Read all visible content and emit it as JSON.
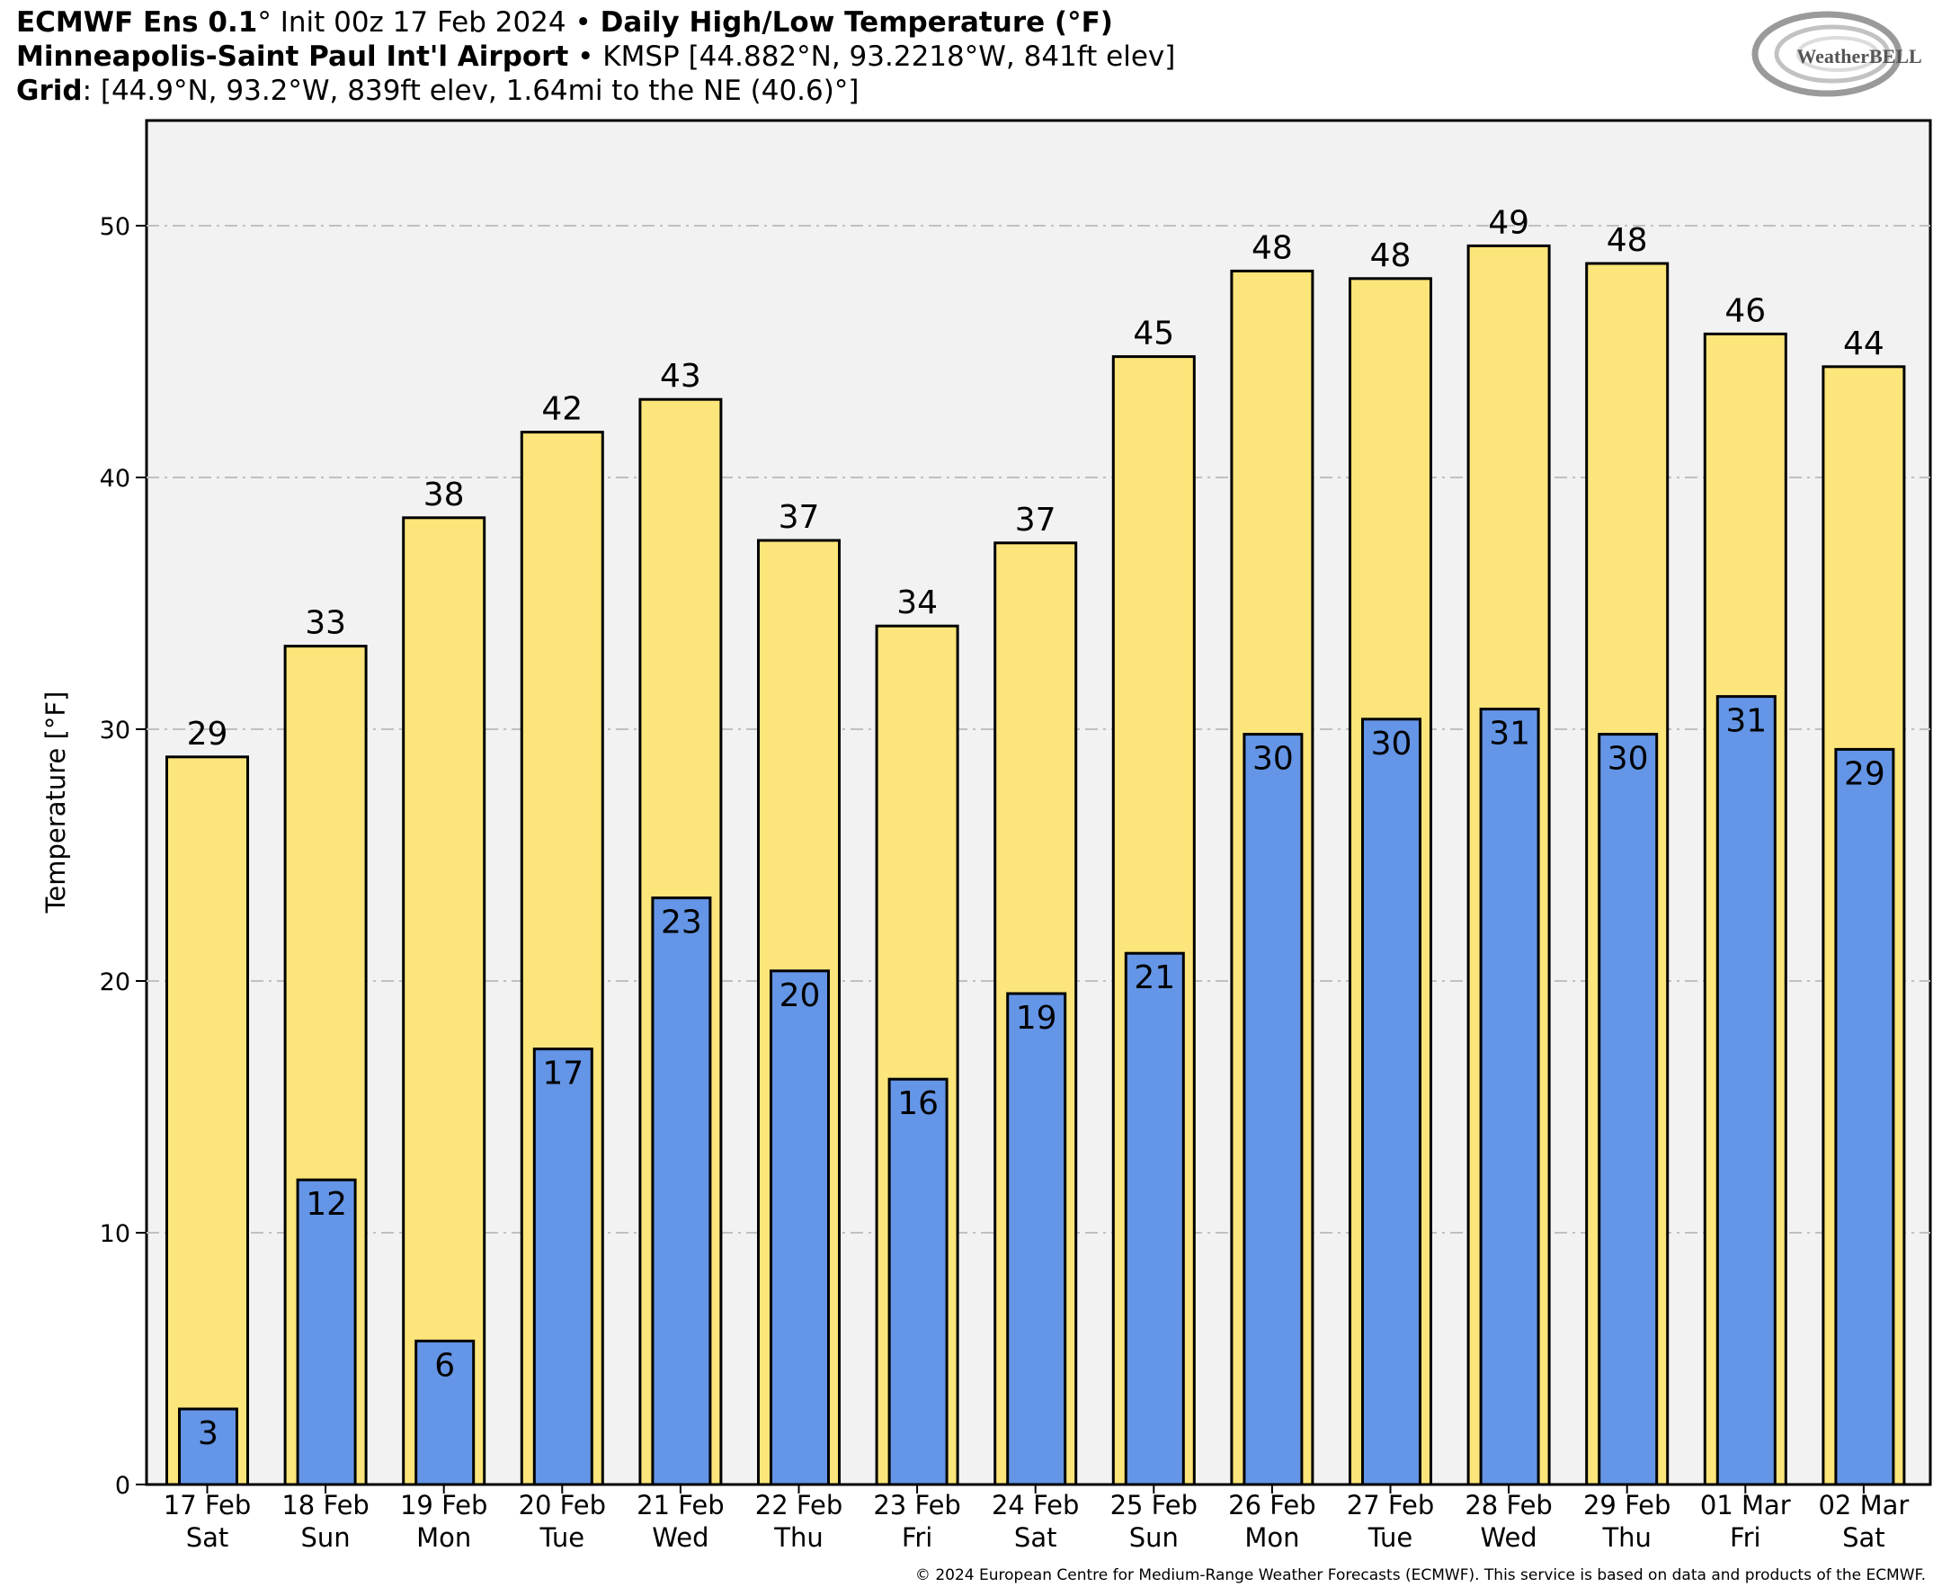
{
  "header": {
    "line1_bold1": "ECMWF Ens 0.1",
    "line1_deg": "°",
    "line1_normal": " Init 00z 17 Feb 2024 • ",
    "line1_bold2": "Daily High/Low Temperature (°F)",
    "line2_bold": "Minneapolis-Saint Paul Int'l Airport",
    "line2_normal": " • KMSP [44.882°N, 93.2218°W, 841ft elev]",
    "line3_bold": "Grid",
    "line3_normal": ": [44.9°N, 93.2°W, 839ft elev, 1.64mi to the NE (40.6)°]"
  },
  "logo": {
    "text": "WeatherBELL"
  },
  "copyright": "© 2024 European Centre for Medium-Range Weather Forecasts (ECMWF). This service is based on data and products of the ECMWF.",
  "colors": {
    "high_bar": "#fce57a",
    "low_bar": "#6495e6",
    "plot_bg": "#f2f2f2",
    "grid": "#c0c0c0"
  },
  "chart_data": {
    "type": "bar",
    "ylabel": "Temperature [°F]",
    "ylim": [
      0,
      53
    ],
    "yticks": [
      0,
      10,
      20,
      30,
      40,
      50
    ],
    "grid": true,
    "categories": [
      [
        "17 Feb",
        "Sat"
      ],
      [
        "18 Feb",
        "Sun"
      ],
      [
        "19 Feb",
        "Mon"
      ],
      [
        "20 Feb",
        "Tue"
      ],
      [
        "21 Feb",
        "Wed"
      ],
      [
        "22 Feb",
        "Thu"
      ],
      [
        "23 Feb",
        "Fri"
      ],
      [
        "24 Feb",
        "Sat"
      ],
      [
        "25 Feb",
        "Sun"
      ],
      [
        "26 Feb",
        "Mon"
      ],
      [
        "27 Feb",
        "Tue"
      ],
      [
        "28 Feb",
        "Wed"
      ],
      [
        "29 Feb",
        "Thu"
      ],
      [
        "01 Mar",
        "Fri"
      ],
      [
        "02 Mar",
        "Sat"
      ]
    ],
    "series": [
      {
        "values": [
          28.9,
          33.3,
          38.4,
          41.8,
          43.1,
          37.5,
          34.1,
          37.4,
          44.8,
          48.2,
          47.9,
          49.2,
          48.5,
          45.7,
          44.4
        ],
        "labels": [
          "29",
          "33",
          "38",
          "42",
          "43",
          "37",
          "34",
          "37",
          "45",
          "48",
          "48",
          "49",
          "48",
          "46",
          "44"
        ]
      },
      {
        "values": [
          3.0,
          12.1,
          5.7,
          17.3,
          23.3,
          20.4,
          16.1,
          19.5,
          21.1,
          29.8,
          30.4,
          30.8,
          29.8,
          31.3,
          29.2
        ],
        "labels": [
          "3",
          "12",
          "6",
          "17",
          "23",
          "20",
          "16",
          "19",
          "21",
          "30",
          "30",
          "31",
          "30",
          "31",
          "29"
        ]
      }
    ]
  }
}
